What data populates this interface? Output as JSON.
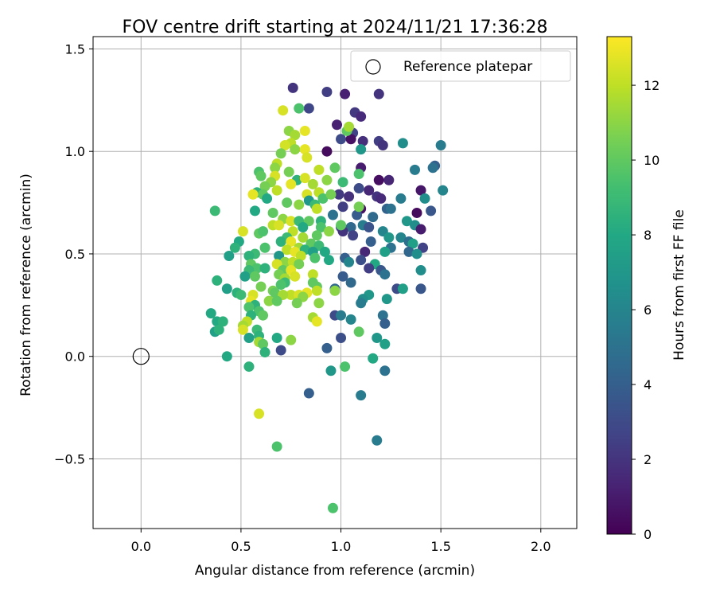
{
  "chart_data": {
    "type": "scatter",
    "title": "FOV centre drift starting at 2024/11/21 17:36:28",
    "xlabel": "Angular distance from reference (arcmin)",
    "ylabel": "Rotation from reference (arcmin)",
    "xlim": [
      -0.24,
      2.18
    ],
    "ylim": [
      -0.84,
      1.56
    ],
    "xticks": [
      0.0,
      0.5,
      1.0,
      1.5,
      2.0
    ],
    "xtick_labels": [
      "0.0",
      "0.5",
      "1.0",
      "1.5",
      "2.0"
    ],
    "yticks": [
      -0.5,
      0.0,
      0.5,
      1.0,
      1.5
    ],
    "ytick_labels": [
      "−0.5",
      "0.0",
      "0.5",
      "1.0",
      "1.5"
    ],
    "grid": true,
    "legend": {
      "placement": "top-right",
      "entries": [
        "Reference platepar"
      ]
    },
    "reference_point": {
      "x": 0.0,
      "y": 0.0
    },
    "colorbar": {
      "label": "Hours from first FF file",
      "range": [
        0,
        13.3
      ],
      "ticks": [
        0,
        2,
        4,
        6,
        8,
        10,
        12
      ],
      "tick_labels": [
        "0",
        "2",
        "4",
        "6",
        "8",
        "10",
        "12"
      ],
      "colormap": "viridis"
    },
    "points": [
      {
        "x": 0.76,
        "y": 1.31,
        "c": 2.0
      },
      {
        "x": 0.93,
        "y": 1.29,
        "c": 2.4
      },
      {
        "x": 1.02,
        "y": 1.28,
        "c": 1.2
      },
      {
        "x": 1.19,
        "y": 1.28,
        "c": 2.0
      },
      {
        "x": 0.84,
        "y": 1.21,
        "c": 2.8
      },
      {
        "x": 1.07,
        "y": 1.19,
        "c": 2.2
      },
      {
        "x": 1.1,
        "y": 1.17,
        "c": 1.6
      },
      {
        "x": 0.98,
        "y": 1.13,
        "c": 1.2
      },
      {
        "x": 1.06,
        "y": 1.09,
        "c": 2.6
      },
      {
        "x": 1.0,
        "y": 1.06,
        "c": 3.0
      },
      {
        "x": 1.05,
        "y": 1.06,
        "c": 0.6
      },
      {
        "x": 1.11,
        "y": 1.05,
        "c": 1.8
      },
      {
        "x": 1.19,
        "y": 1.05,
        "c": 2.4
      },
      {
        "x": 1.21,
        "y": 1.03,
        "c": 2.0
      },
      {
        "x": 1.31,
        "y": 1.04,
        "c": 6.5
      },
      {
        "x": 0.93,
        "y": 1.0,
        "c": 0.4
      },
      {
        "x": 1.1,
        "y": 1.01,
        "c": 7.0
      },
      {
        "x": 1.5,
        "y": 1.03,
        "c": 5.5
      },
      {
        "x": 1.47,
        "y": 0.93,
        "c": 4.0
      },
      {
        "x": 1.1,
        "y": 0.92,
        "c": 1.0
      },
      {
        "x": 1.37,
        "y": 0.91,
        "c": 5.5
      },
      {
        "x": 1.46,
        "y": 0.92,
        "c": 5.0
      },
      {
        "x": 1.19,
        "y": 0.86,
        "c": 0.5
      },
      {
        "x": 1.24,
        "y": 0.86,
        "c": 1.4
      },
      {
        "x": 1.09,
        "y": 0.82,
        "c": 3.0
      },
      {
        "x": 1.14,
        "y": 0.81,
        "c": 1.5
      },
      {
        "x": 1.18,
        "y": 0.78,
        "c": 2.0
      },
      {
        "x": 1.2,
        "y": 0.77,
        "c": 1.6
      },
      {
        "x": 1.4,
        "y": 0.81,
        "c": 0.8
      },
      {
        "x": 1.51,
        "y": 0.81,
        "c": 6.0
      },
      {
        "x": 0.99,
        "y": 0.79,
        "c": 2.2
      },
      {
        "x": 1.04,
        "y": 0.78,
        "c": 1.8
      },
      {
        "x": 1.3,
        "y": 0.77,
        "c": 5.5
      },
      {
        "x": 1.42,
        "y": 0.77,
        "c": 6.5
      },
      {
        "x": 1.01,
        "y": 0.73,
        "c": 2.4
      },
      {
        "x": 1.1,
        "y": 0.72,
        "c": 0.6
      },
      {
        "x": 1.23,
        "y": 0.72,
        "c": 4.2
      },
      {
        "x": 1.25,
        "y": 0.72,
        "c": 5.0
      },
      {
        "x": 1.38,
        "y": 0.7,
        "c": 0.4
      },
      {
        "x": 1.45,
        "y": 0.71,
        "c": 3.6
      },
      {
        "x": 0.96,
        "y": 0.69,
        "c": 5.0
      },
      {
        "x": 1.08,
        "y": 0.69,
        "c": 3.8
      },
      {
        "x": 1.16,
        "y": 0.68,
        "c": 4.6
      },
      {
        "x": 1.33,
        "y": 0.66,
        "c": 7.0
      },
      {
        "x": 1.37,
        "y": 0.64,
        "c": 6.5
      },
      {
        "x": 1.4,
        "y": 0.62,
        "c": 1.0
      },
      {
        "x": 1.0,
        "y": 0.63,
        "c": 2.5
      },
      {
        "x": 1.05,
        "y": 0.63,
        "c": 4.5
      },
      {
        "x": 1.11,
        "y": 0.64,
        "c": 5.5
      },
      {
        "x": 1.14,
        "y": 0.63,
        "c": 3.4
      },
      {
        "x": 1.21,
        "y": 0.61,
        "c": 6.0
      },
      {
        "x": 1.24,
        "y": 0.58,
        "c": 7.0
      },
      {
        "x": 1.01,
        "y": 0.61,
        "c": 2.0
      },
      {
        "x": 1.06,
        "y": 0.59,
        "c": 2.6
      },
      {
        "x": 1.15,
        "y": 0.56,
        "c": 4.0
      },
      {
        "x": 1.3,
        "y": 0.58,
        "c": 6.0
      },
      {
        "x": 1.34,
        "y": 0.56,
        "c": 4.8
      },
      {
        "x": 1.36,
        "y": 0.55,
        "c": 7.5
      },
      {
        "x": 1.41,
        "y": 0.53,
        "c": 2.6
      },
      {
        "x": 1.25,
        "y": 0.53,
        "c": 5.0
      },
      {
        "x": 1.12,
        "y": 0.51,
        "c": 1.5
      },
      {
        "x": 1.22,
        "y": 0.51,
        "c": 7.5
      },
      {
        "x": 1.34,
        "y": 0.51,
        "c": 4.4
      },
      {
        "x": 1.38,
        "y": 0.5,
        "c": 6.5
      },
      {
        "x": 1.02,
        "y": 0.48,
        "c": 4.0
      },
      {
        "x": 1.1,
        "y": 0.47,
        "c": 3.2
      },
      {
        "x": 1.04,
        "y": 0.46,
        "c": 6.0
      },
      {
        "x": 1.17,
        "y": 0.45,
        "c": 8.0
      },
      {
        "x": 1.14,
        "y": 0.43,
        "c": 2.4
      },
      {
        "x": 1.2,
        "y": 0.42,
        "c": 3.6
      },
      {
        "x": 1.4,
        "y": 0.42,
        "c": 6.5
      },
      {
        "x": 1.01,
        "y": 0.39,
        "c": 3.8
      },
      {
        "x": 1.05,
        "y": 0.36,
        "c": 4.5
      },
      {
        "x": 1.22,
        "y": 0.4,
        "c": 5.0
      },
      {
        "x": 0.97,
        "y": 0.33,
        "c": 4.5
      },
      {
        "x": 1.28,
        "y": 0.33,
        "c": 3.0
      },
      {
        "x": 1.31,
        "y": 0.33,
        "c": 7.5
      },
      {
        "x": 1.4,
        "y": 0.33,
        "c": 3.6
      },
      {
        "x": 1.14,
        "y": 0.3,
        "c": 7.0
      },
      {
        "x": 1.23,
        "y": 0.28,
        "c": 7.0
      },
      {
        "x": 1.11,
        "y": 0.28,
        "c": 6.5
      },
      {
        "x": 1.1,
        "y": 0.26,
        "c": 5.5
      },
      {
        "x": 0.97,
        "y": 0.2,
        "c": 3.0
      },
      {
        "x": 1.0,
        "y": 0.2,
        "c": 5.5
      },
      {
        "x": 1.05,
        "y": 0.18,
        "c": 6.0
      },
      {
        "x": 1.21,
        "y": 0.2,
        "c": 5.0
      },
      {
        "x": 1.22,
        "y": 0.16,
        "c": 4.0
      },
      {
        "x": 1.09,
        "y": 0.12,
        "c": 10.0
      },
      {
        "x": 1.18,
        "y": 0.09,
        "c": 7.0
      },
      {
        "x": 1.0,
        "y": 0.09,
        "c": 3.2
      },
      {
        "x": 1.22,
        "y": 0.06,
        "c": 7.5
      },
      {
        "x": 0.93,
        "y": 0.04,
        "c": 4.0
      },
      {
        "x": 1.16,
        "y": -0.01,
        "c": 8.0
      },
      {
        "x": 0.95,
        "y": -0.07,
        "c": 7.0
      },
      {
        "x": 1.02,
        "y": -0.05,
        "c": 9.5
      },
      {
        "x": 1.22,
        "y": -0.07,
        "c": 5.0
      },
      {
        "x": 0.84,
        "y": -0.18,
        "c": 4.0
      },
      {
        "x": 1.1,
        "y": -0.19,
        "c": 5.5
      },
      {
        "x": 1.18,
        "y": -0.41,
        "c": 5.5
      },
      {
        "x": 0.96,
        "y": -0.74,
        "c": 9.5
      },
      {
        "x": 0.79,
        "y": 1.21,
        "c": 9.5
      },
      {
        "x": 0.71,
        "y": 1.2,
        "c": 12.5
      },
      {
        "x": 0.74,
        "y": 1.1,
        "c": 11.0
      },
      {
        "x": 0.82,
        "y": 1.1,
        "c": 12.8
      },
      {
        "x": 0.77,
        "y": 1.08,
        "c": 11.5
      },
      {
        "x": 0.75,
        "y": 1.04,
        "c": 12.0
      },
      {
        "x": 0.72,
        "y": 1.03,
        "c": 12.4
      },
      {
        "x": 0.77,
        "y": 1.01,
        "c": 11.0
      },
      {
        "x": 0.82,
        "y": 1.01,
        "c": 12.8
      },
      {
        "x": 0.7,
        "y": 0.99,
        "c": 10.5
      },
      {
        "x": 0.83,
        "y": 0.97,
        "c": 12.5
      },
      {
        "x": 1.03,
        "y": 1.1,
        "c": 10.0
      },
      {
        "x": 1.04,
        "y": 1.12,
        "c": 11.5
      },
      {
        "x": 0.68,
        "y": 0.94,
        "c": 12.0
      },
      {
        "x": 0.67,
        "y": 0.92,
        "c": 11.0
      },
      {
        "x": 0.59,
        "y": 0.9,
        "c": 9.5
      },
      {
        "x": 0.89,
        "y": 0.91,
        "c": 12.0
      },
      {
        "x": 0.74,
        "y": 0.9,
        "c": 10.5
      },
      {
        "x": 0.97,
        "y": 0.92,
        "c": 10.0
      },
      {
        "x": 0.6,
        "y": 0.88,
        "c": 10.0
      },
      {
        "x": 0.67,
        "y": 0.88,
        "c": 12.5
      },
      {
        "x": 0.78,
        "y": 0.86,
        "c": 8.5
      },
      {
        "x": 0.82,
        "y": 0.87,
        "c": 12.5
      },
      {
        "x": 0.65,
        "y": 0.85,
        "c": 11.0
      },
      {
        "x": 0.62,
        "y": 0.83,
        "c": 10.5
      },
      {
        "x": 0.75,
        "y": 0.84,
        "c": 12.8
      },
      {
        "x": 0.86,
        "y": 0.84,
        "c": 11.5
      },
      {
        "x": 0.93,
        "y": 0.86,
        "c": 11.0
      },
      {
        "x": 1.01,
        "y": 0.85,
        "c": 9.0
      },
      {
        "x": 1.09,
        "y": 0.89,
        "c": 9.5
      },
      {
        "x": 0.58,
        "y": 0.8,
        "c": 8.5
      },
      {
        "x": 0.61,
        "y": 0.79,
        "c": 10.0
      },
      {
        "x": 0.68,
        "y": 0.81,
        "c": 12.0
      },
      {
        "x": 0.83,
        "y": 0.79,
        "c": 12.5
      },
      {
        "x": 0.89,
        "y": 0.8,
        "c": 12.0
      },
      {
        "x": 0.56,
        "y": 0.79,
        "c": 12.8
      },
      {
        "x": 0.84,
        "y": 0.76,
        "c": 7.0
      },
      {
        "x": 0.91,
        "y": 0.77,
        "c": 9.5
      },
      {
        "x": 0.95,
        "y": 0.79,
        "c": 10.5
      },
      {
        "x": 0.63,
        "y": 0.77,
        "c": 8.0
      },
      {
        "x": 0.73,
        "y": 0.75,
        "c": 10.0
      },
      {
        "x": 0.79,
        "y": 0.74,
        "c": 11.0
      },
      {
        "x": 0.87,
        "y": 0.74,
        "c": 9.0
      },
      {
        "x": 0.57,
        "y": 0.71,
        "c": 8.0
      },
      {
        "x": 0.37,
        "y": 0.71,
        "c": 9.0
      },
      {
        "x": 0.66,
        "y": 0.7,
        "c": 10.0
      },
      {
        "x": 0.88,
        "y": 0.72,
        "c": 12.0
      },
      {
        "x": 0.71,
        "y": 0.67,
        "c": 11.0
      },
      {
        "x": 0.75,
        "y": 0.66,
        "c": 12.5
      },
      {
        "x": 0.79,
        "y": 0.66,
        "c": 9.0
      },
      {
        "x": 0.84,
        "y": 0.66,
        "c": 10.0
      },
      {
        "x": 0.9,
        "y": 0.66,
        "c": 8.5
      },
      {
        "x": 1.09,
        "y": 0.73,
        "c": 10.5
      },
      {
        "x": 0.66,
        "y": 0.64,
        "c": 12.0
      },
      {
        "x": 0.69,
        "y": 0.64,
        "c": 12.5
      },
      {
        "x": 0.81,
        "y": 0.63,
        "c": 8.0
      },
      {
        "x": 0.9,
        "y": 0.63,
        "c": 9.5
      },
      {
        "x": 1.0,
        "y": 0.64,
        "c": 10.0
      },
      {
        "x": 0.51,
        "y": 0.61,
        "c": 12.5
      },
      {
        "x": 0.59,
        "y": 0.6,
        "c": 10.0
      },
      {
        "x": 0.61,
        "y": 0.61,
        "c": 9.5
      },
      {
        "x": 0.76,
        "y": 0.61,
        "c": 12.0
      },
      {
        "x": 0.94,
        "y": 0.61,
        "c": 11.0
      },
      {
        "x": 0.88,
        "y": 0.59,
        "c": 10.0
      },
      {
        "x": 0.73,
        "y": 0.58,
        "c": 9.0
      },
      {
        "x": 0.81,
        "y": 0.58,
        "c": 11.5
      },
      {
        "x": 0.49,
        "y": 0.56,
        "c": 8.0
      },
      {
        "x": 0.7,
        "y": 0.56,
        "c": 8.5
      },
      {
        "x": 0.75,
        "y": 0.56,
        "c": 12.8
      },
      {
        "x": 0.85,
        "y": 0.55,
        "c": 10.0
      },
      {
        "x": 0.89,
        "y": 0.54,
        "c": 9.0
      },
      {
        "x": 0.79,
        "y": 0.53,
        "c": 11.5
      },
      {
        "x": 0.47,
        "y": 0.53,
        "c": 8.5
      },
      {
        "x": 0.62,
        "y": 0.53,
        "c": 9.5
      },
      {
        "x": 0.73,
        "y": 0.52,
        "c": 12.0
      },
      {
        "x": 0.77,
        "y": 0.51,
        "c": 12.8
      },
      {
        "x": 0.82,
        "y": 0.52,
        "c": 8.5
      },
      {
        "x": 0.86,
        "y": 0.51,
        "c": 7.5
      },
      {
        "x": 0.92,
        "y": 0.51,
        "c": 8.0
      },
      {
        "x": 0.57,
        "y": 0.5,
        "c": 9.0
      },
      {
        "x": 0.44,
        "y": 0.49,
        "c": 7.5
      },
      {
        "x": 0.54,
        "y": 0.49,
        "c": 8.5
      },
      {
        "x": 0.69,
        "y": 0.49,
        "c": 7.0
      },
      {
        "x": 0.8,
        "y": 0.49,
        "c": 12.0
      },
      {
        "x": 0.87,
        "y": 0.48,
        "c": 9.5
      },
      {
        "x": 0.94,
        "y": 0.47,
        "c": 8.0
      },
      {
        "x": 0.72,
        "y": 0.46,
        "c": 11.0
      },
      {
        "x": 0.76,
        "y": 0.46,
        "c": 12.0
      },
      {
        "x": 0.55,
        "y": 0.45,
        "c": 10.0
      },
      {
        "x": 0.68,
        "y": 0.45,
        "c": 12.5
      },
      {
        "x": 0.79,
        "y": 0.45,
        "c": 10.5
      },
      {
        "x": 0.58,
        "y": 0.43,
        "c": 9.5
      },
      {
        "x": 0.62,
        "y": 0.43,
        "c": 8.5
      },
      {
        "x": 0.71,
        "y": 0.42,
        "c": 10.0
      },
      {
        "x": 0.75,
        "y": 0.42,
        "c": 12.8
      },
      {
        "x": 0.54,
        "y": 0.42,
        "c": 9.0
      },
      {
        "x": 0.69,
        "y": 0.4,
        "c": 10.5
      },
      {
        "x": 0.72,
        "y": 0.38,
        "c": 11.5
      },
      {
        "x": 0.77,
        "y": 0.39,
        "c": 12.5
      },
      {
        "x": 0.86,
        "y": 0.4,
        "c": 12.0
      },
      {
        "x": 0.52,
        "y": 0.39,
        "c": 7.5
      },
      {
        "x": 0.57,
        "y": 0.39,
        "c": 10.0
      },
      {
        "x": 0.72,
        "y": 0.36,
        "c": 9.0
      },
      {
        "x": 0.38,
        "y": 0.37,
        "c": 8.5
      },
      {
        "x": 0.7,
        "y": 0.35,
        "c": 9.5
      },
      {
        "x": 0.86,
        "y": 0.36,
        "c": 10.0
      },
      {
        "x": 0.6,
        "y": 0.34,
        "c": 10.5
      },
      {
        "x": 0.88,
        "y": 0.34,
        "c": 10.0
      },
      {
        "x": 0.43,
        "y": 0.33,
        "c": 7.5
      },
      {
        "x": 0.48,
        "y": 0.31,
        "c": 8.5
      },
      {
        "x": 0.66,
        "y": 0.32,
        "c": 10.5
      },
      {
        "x": 0.67,
        "y": 0.31,
        "c": 10.0
      },
      {
        "x": 0.75,
        "y": 0.3,
        "c": 12.0
      },
      {
        "x": 0.79,
        "y": 0.3,
        "c": 12.5
      },
      {
        "x": 0.83,
        "y": 0.31,
        "c": 12.8
      },
      {
        "x": 0.88,
        "y": 0.32,
        "c": 12.0
      },
      {
        "x": 0.97,
        "y": 0.32,
        "c": 11.0
      },
      {
        "x": 0.5,
        "y": 0.3,
        "c": 9.0
      },
      {
        "x": 0.56,
        "y": 0.3,
        "c": 12.5
      },
      {
        "x": 0.71,
        "y": 0.3,
        "c": 11.5
      },
      {
        "x": 0.81,
        "y": 0.29,
        "c": 11.0
      },
      {
        "x": 0.55,
        "y": 0.27,
        "c": 12.8
      },
      {
        "x": 0.64,
        "y": 0.27,
        "c": 11.0
      },
      {
        "x": 0.68,
        "y": 0.27,
        "c": 10.0
      },
      {
        "x": 0.78,
        "y": 0.26,
        "c": 10.5
      },
      {
        "x": 0.89,
        "y": 0.26,
        "c": 11.0
      },
      {
        "x": 0.57,
        "y": 0.25,
        "c": 8.5
      },
      {
        "x": 0.54,
        "y": 0.24,
        "c": 9.5
      },
      {
        "x": 0.59,
        "y": 0.22,
        "c": 9.5
      },
      {
        "x": 0.35,
        "y": 0.21,
        "c": 8.0
      },
      {
        "x": 0.55,
        "y": 0.2,
        "c": 8.5
      },
      {
        "x": 0.61,
        "y": 0.2,
        "c": 10.0
      },
      {
        "x": 0.86,
        "y": 0.19,
        "c": 11.5
      },
      {
        "x": 0.88,
        "y": 0.17,
        "c": 12.8
      },
      {
        "x": 0.53,
        "y": 0.17,
        "c": 12.0
      },
      {
        "x": 0.38,
        "y": 0.17,
        "c": 8.0
      },
      {
        "x": 0.41,
        "y": 0.17,
        "c": 8.5
      },
      {
        "x": 0.51,
        "y": 0.15,
        "c": 11.5
      },
      {
        "x": 0.51,
        "y": 0.13,
        "c": 12.5
      },
      {
        "x": 0.37,
        "y": 0.12,
        "c": 7.5
      },
      {
        "x": 0.39,
        "y": 0.13,
        "c": 8.5
      },
      {
        "x": 0.58,
        "y": 0.13,
        "c": 9.0
      },
      {
        "x": 0.59,
        "y": 0.1,
        "c": 8.5
      },
      {
        "x": 0.54,
        "y": 0.09,
        "c": 7.5
      },
      {
        "x": 0.68,
        "y": 0.09,
        "c": 8.0
      },
      {
        "x": 0.75,
        "y": 0.08,
        "c": 11.0
      },
      {
        "x": 0.59,
        "y": 0.07,
        "c": 11.5
      },
      {
        "x": 0.61,
        "y": 0.06,
        "c": 10.0
      },
      {
        "x": 0.62,
        "y": 0.02,
        "c": 8.5
      },
      {
        "x": 0.7,
        "y": 0.03,
        "c": 3.0
      },
      {
        "x": 0.43,
        "y": 0.0,
        "c": 8.0
      },
      {
        "x": 0.54,
        "y": -0.05,
        "c": 8.5
      },
      {
        "x": 0.59,
        "y": -0.28,
        "c": 12.5
      },
      {
        "x": 0.68,
        "y": -0.44,
        "c": 9.5
      }
    ]
  }
}
